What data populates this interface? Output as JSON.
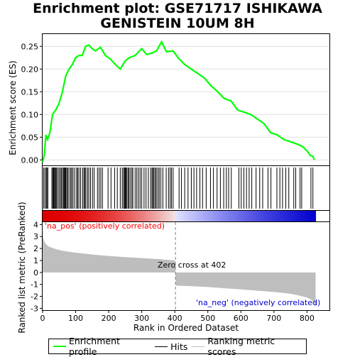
{
  "title_line1": "Enrichment plot: GSE71717 ISHIKAWA",
  "title_line2": "GENISTEIN 10UM 8H",
  "colors": {
    "es_line": "#00ff00",
    "hits": "#000000",
    "metric_fill": "#bebebe",
    "pos_label": "#ff0000",
    "neg_label": "#0000cc",
    "zero_line": "#808080"
  },
  "chart_data": [
    {
      "type": "line",
      "ylabel": "Enrichment score (ES)",
      "yticks": [
        "0.00",
        "0.05",
        "0.10",
        "0.15",
        "0.20",
        "0.25"
      ],
      "ylim": [
        -0.012,
        0.277
      ],
      "xlim": [
        0,
        868
      ],
      "series": [
        {
          "x": [
            0,
            5,
            10,
            15,
            22,
            30,
            40,
            50,
            60,
            70,
            80,
            90,
            100,
            110,
            120,
            130,
            140,
            150,
            160,
            175,
            190,
            205,
            220,
            235,
            250,
            262,
            280,
            300,
            315,
            330,
            345,
            360,
            375,
            395,
            410,
            430,
            450,
            470,
            490,
            510,
            530,
            550,
            570,
            590,
            610,
            630,
            650,
            670,
            690,
            710,
            730,
            750,
            770,
            785,
            800,
            810,
            818,
            822
          ],
          "y": [
            -0.005,
            0.01,
            0.055,
            0.045,
            0.06,
            0.1,
            0.11,
            0.125,
            0.15,
            0.185,
            0.2,
            0.21,
            0.225,
            0.23,
            0.23,
            0.25,
            0.253,
            0.245,
            0.24,
            0.248,
            0.23,
            0.222,
            0.21,
            0.2,
            0.218,
            0.225,
            0.23,
            0.245,
            0.232,
            0.235,
            0.24,
            0.26,
            0.238,
            0.24,
            0.225,
            0.21,
            0.2,
            0.19,
            0.18,
            0.163,
            0.15,
            0.135,
            0.13,
            0.11,
            0.105,
            0.1,
            0.09,
            0.08,
            0.06,
            0.055,
            0.045,
            0.04,
            0.035,
            0.03,
            0.02,
            0.01,
            0.008,
            0.0
          ]
        }
      ]
    },
    {
      "type": "area",
      "xlabel": "Rank in Ordered Dataset",
      "ylabel": "Ranked list metric (PreRanked)",
      "yticks": [
        "-3",
        "-2",
        "-1",
        "0",
        "1",
        "2",
        "3",
        "4"
      ],
      "ylim": [
        -3.15,
        4.2
      ],
      "xticks": [
        "0",
        "100",
        "200",
        "300",
        "400",
        "500",
        "600",
        "700",
        "800"
      ],
      "xlim": [
        0,
        868
      ],
      "total": 826,
      "zero_cross": 402,
      "annotation": "Zero cross at 402",
      "pos_label": "'na_pos' (positively correlated)",
      "neg_label": "'na_neg' (negatively correlated)",
      "metric_x": [
        0,
        2,
        5,
        10,
        20,
        40,
        60,
        80,
        100,
        150,
        200,
        250,
        300,
        350,
        400,
        401,
        402,
        403,
        450,
        500,
        550,
        600,
        650,
        700,
        750,
        780,
        800,
        815,
        822,
        826
      ],
      "metric_y": [
        3.5,
        2.9,
        2.6,
        2.35,
        2.15,
        1.95,
        1.82,
        1.72,
        1.65,
        1.5,
        1.38,
        1.28,
        1.2,
        1.12,
        1.0,
        1.0,
        0.0,
        -1.1,
        -1.15,
        -1.22,
        -1.32,
        -1.42,
        -1.52,
        -1.63,
        -1.78,
        -1.95,
        -2.1,
        -2.3,
        -2.6,
        -2.9
      ]
    }
  ],
  "hits": [
    3,
    7,
    11,
    13,
    16,
    28,
    31,
    33,
    35,
    37,
    40,
    42,
    46,
    50,
    54,
    57,
    61,
    64,
    66,
    68,
    70,
    73,
    76,
    80,
    85,
    88,
    92,
    97,
    103,
    106,
    110,
    115,
    121,
    125,
    128,
    131,
    136,
    140,
    145,
    151,
    156,
    166,
    171,
    176,
    181,
    198,
    207,
    218,
    226,
    235,
    241,
    245,
    248,
    250,
    252,
    254,
    258,
    261,
    265,
    270,
    273,
    280,
    285,
    290,
    295,
    300,
    307,
    313,
    320,
    327,
    331,
    334,
    337,
    341,
    344,
    349,
    353,
    358,
    364,
    374,
    381,
    386,
    390,
    395,
    413,
    420,
    430,
    440,
    450,
    458,
    466,
    476,
    484,
    495,
    508,
    517,
    528,
    538,
    548,
    556,
    563,
    571,
    594,
    601,
    609,
    617,
    625,
    633,
    646,
    657,
    666,
    682,
    691,
    709,
    718,
    726,
    736,
    745,
    760,
    766,
    779,
    784,
    812,
    818
  ],
  "legend": [
    "Enrichment profile",
    "Hits",
    "Ranking metric scores"
  ]
}
